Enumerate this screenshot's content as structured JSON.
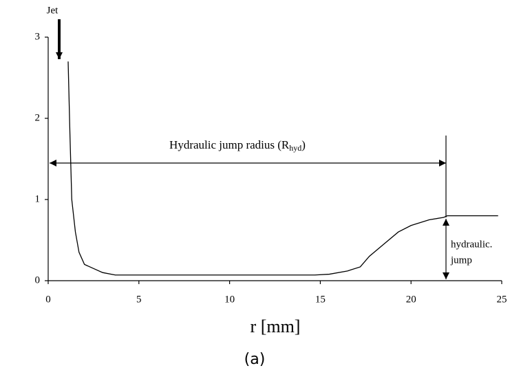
{
  "chart_data": {
    "type": "line",
    "x": [
      1.1,
      1.2,
      1.3,
      1.5,
      1.7,
      2.0,
      2.5,
      3.0,
      3.7,
      5,
      10,
      14.7,
      15.5,
      16.5,
      17.2,
      17.7,
      18.5,
      19.3,
      20,
      21,
      21.8,
      22,
      24.8
    ],
    "values": [
      2.7,
      1.8,
      1.0,
      0.6,
      0.35,
      0.2,
      0.15,
      0.1,
      0.07,
      0.07,
      0.07,
      0.07,
      0.08,
      0.12,
      0.17,
      0.3,
      0.45,
      0.6,
      0.68,
      0.75,
      0.78,
      0.8,
      0.8
    ],
    "color": "#000000",
    "xlim": [
      0,
      25
    ],
    "xticks": [
      0,
      5,
      10,
      15,
      20,
      25
    ],
    "ylim": [
      0,
      3
    ],
    "yticks": [
      0,
      1,
      2,
      3
    ],
    "xlabel": "r [mm]",
    "caption": "(a)",
    "annotations": {
      "jet": "Jet",
      "radius": [
        "Hydraulic jump radius  (R",
        "hyd",
        ")"
      ],
      "jump": [
        "hydraulic.",
        "jump"
      ]
    }
  }
}
